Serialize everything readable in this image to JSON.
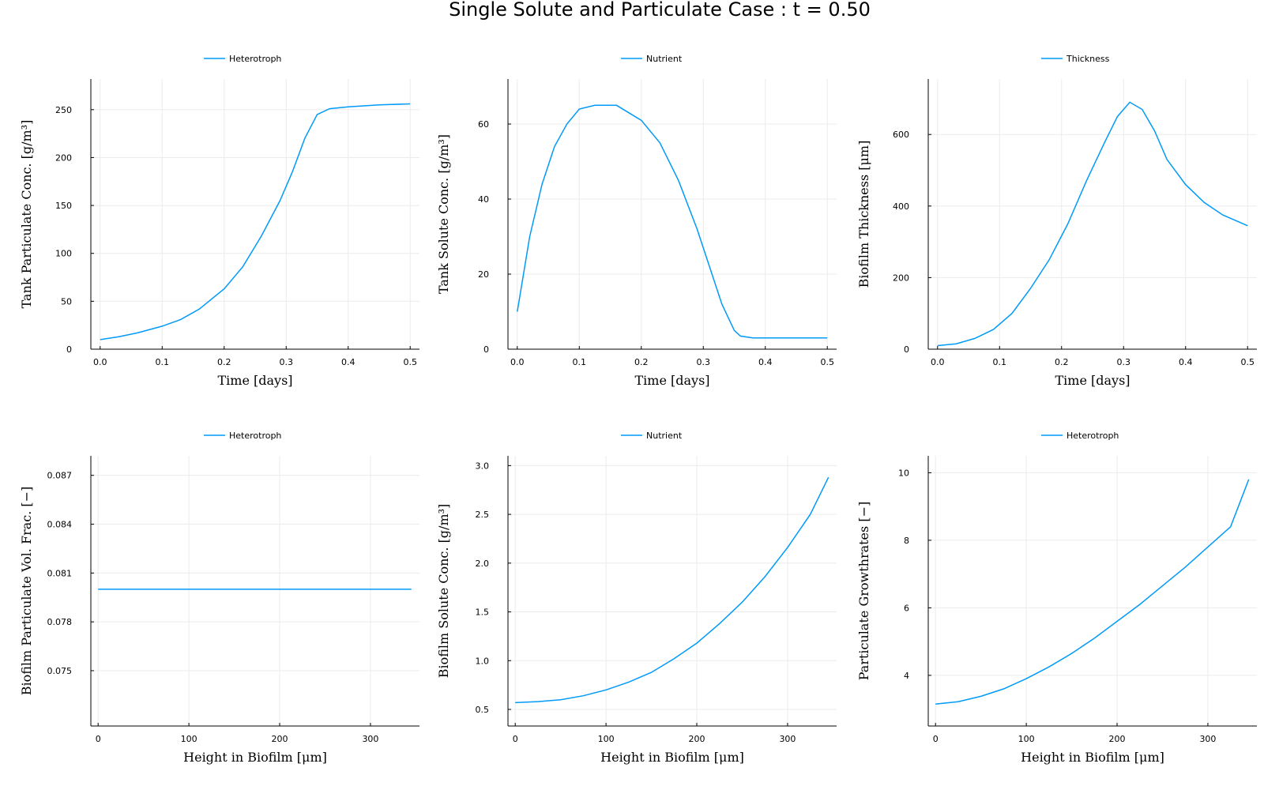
{
  "figure": {
    "title": "Single Solute and Particulate Case : t = 0.50",
    "line_color": "#009af9"
  },
  "chart_data": [
    {
      "type": "line",
      "legend": "Heterotroph",
      "xlabel": "Time [days]",
      "ylabel": "Tank Particulate Conc. [g/m³]",
      "xlim": [
        -0.015,
        0.515
      ],
      "ylim": [
        0,
        282
      ],
      "xticks": [
        0.0,
        0.1,
        0.2,
        0.3,
        0.4,
        0.5
      ],
      "xtick_labels": [
        "0.0",
        "0.1",
        "0.2",
        "0.3",
        "0.4",
        "0.5"
      ],
      "yticks": [
        0,
        50,
        100,
        150,
        200,
        250
      ],
      "ytick_labels": [
        "0",
        "50",
        "100",
        "150",
        "200",
        "250"
      ],
      "x": [
        0,
        0.03,
        0.06,
        0.1,
        0.13,
        0.16,
        0.2,
        0.23,
        0.26,
        0.29,
        0.31,
        0.33,
        0.35,
        0.37,
        0.4,
        0.45,
        0.5
      ],
      "y": [
        10,
        13,
        17,
        24,
        31,
        42,
        63,
        86,
        118,
        155,
        185,
        220,
        245,
        251,
        253,
        255,
        256
      ]
    },
    {
      "type": "line",
      "legend": "Nutrient",
      "xlabel": "Time [days]",
      "ylabel": "Tank Solute Conc. [g/m³]",
      "xlim": [
        -0.015,
        0.515
      ],
      "ylim": [
        0,
        72
      ],
      "xticks": [
        0.0,
        0.1,
        0.2,
        0.3,
        0.4,
        0.5
      ],
      "xtick_labels": [
        "0.0",
        "0.1",
        "0.2",
        "0.3",
        "0.4",
        "0.5"
      ],
      "yticks": [
        0,
        20,
        40,
        60
      ],
      "ytick_labels": [
        "0",
        "20",
        "40",
        "60"
      ],
      "x": [
        0,
        0.02,
        0.04,
        0.06,
        0.08,
        0.1,
        0.125,
        0.16,
        0.2,
        0.23,
        0.26,
        0.29,
        0.31,
        0.33,
        0.35,
        0.36,
        0.38,
        0.4,
        0.45,
        0.5
      ],
      "y": [
        10,
        30,
        44,
        54,
        60,
        64,
        65,
        65,
        61,
        55,
        45,
        32,
        22,
        12,
        5,
        3.5,
        3,
        3,
        3,
        3
      ]
    },
    {
      "type": "line",
      "legend": "Thickness",
      "xlabel": "Time [days]",
      "ylabel": "Biofilm Thickness [μm]",
      "xlim": [
        -0.015,
        0.515
      ],
      "ylim": [
        0,
        755
      ],
      "xticks": [
        0.0,
        0.1,
        0.2,
        0.3,
        0.4,
        0.5
      ],
      "xtick_labels": [
        "0.0",
        "0.1",
        "0.2",
        "0.3",
        "0.4",
        "0.5"
      ],
      "yticks": [
        0,
        200,
        400,
        600
      ],
      "ytick_labels": [
        "0",
        "200",
        "400",
        "600"
      ],
      "x": [
        0,
        0.03,
        0.06,
        0.09,
        0.12,
        0.15,
        0.18,
        0.21,
        0.24,
        0.27,
        0.29,
        0.31,
        0.33,
        0.35,
        0.37,
        0.4,
        0.43,
        0.46,
        0.5
      ],
      "y": [
        10,
        15,
        30,
        55,
        100,
        170,
        250,
        350,
        470,
        580,
        650,
        690,
        670,
        610,
        530,
        460,
        410,
        375,
        345
      ]
    },
    {
      "type": "line",
      "legend": "Heterotroph",
      "xlabel": "Height in Biofilm [μm]",
      "ylabel": "Biofilm Particulate Vol. Frac. [−]",
      "xlim": [
        -8,
        354
      ],
      "ylim": [
        0.0716,
        0.0882
      ],
      "xticks": [
        0,
        100,
        200,
        300
      ],
      "xtick_labels": [
        "0",
        "100",
        "200",
        "300"
      ],
      "yticks": [
        0.075,
        0.078,
        0.081,
        0.084,
        0.087
      ],
      "ytick_labels": [
        "0.075",
        "0.078",
        "0.081",
        "0.084",
        "0.087"
      ],
      "x": [
        0,
        345
      ],
      "y": [
        0.08,
        0.08
      ]
    },
    {
      "type": "line",
      "legend": "Nutrient",
      "xlabel": "Height in Biofilm [μm]",
      "ylabel": "Biofilm Solute Conc. [g/m³]",
      "xlim": [
        -8,
        354
      ],
      "ylim": [
        0.33,
        3.1
      ],
      "xticks": [
        0,
        100,
        200,
        300
      ],
      "xtick_labels": [
        "0",
        "100",
        "200",
        "300"
      ],
      "yticks": [
        0.5,
        1.0,
        1.5,
        2.0,
        2.5,
        3.0
      ],
      "ytick_labels": [
        "0.5",
        "1.0",
        "1.5",
        "2.0",
        "2.5",
        "3.0"
      ],
      "x": [
        0,
        25,
        50,
        75,
        100,
        125,
        150,
        175,
        200,
        225,
        250,
        275,
        300,
        325,
        345
      ],
      "y": [
        0.57,
        0.58,
        0.6,
        0.64,
        0.7,
        0.78,
        0.88,
        1.02,
        1.18,
        1.38,
        1.6,
        1.86,
        2.16,
        2.5,
        2.88
      ]
    },
    {
      "type": "line",
      "legend": "Heterotroph",
      "xlabel": "Height in Biofilm [μm]",
      "ylabel": "Particulate Growthrates [−]",
      "xlim": [
        -8,
        354
      ],
      "ylim": [
        2.5,
        10.5
      ],
      "xticks": [
        0,
        100,
        200,
        300
      ],
      "xtick_labels": [
        "0",
        "100",
        "200",
        "300"
      ],
      "yticks": [
        4,
        6,
        8,
        10
      ],
      "ytick_labels": [
        "4",
        "6",
        "8",
        "10"
      ],
      "x": [
        0,
        25,
        50,
        75,
        100,
        125,
        150,
        175,
        200,
        225,
        250,
        275,
        300,
        325,
        345
      ],
      "y": [
        3.15,
        3.22,
        3.38,
        3.6,
        3.9,
        4.25,
        4.65,
        5.1,
        5.6,
        6.1,
        6.65,
        7.2,
        7.8,
        8.4,
        9.8
      ]
    }
  ]
}
